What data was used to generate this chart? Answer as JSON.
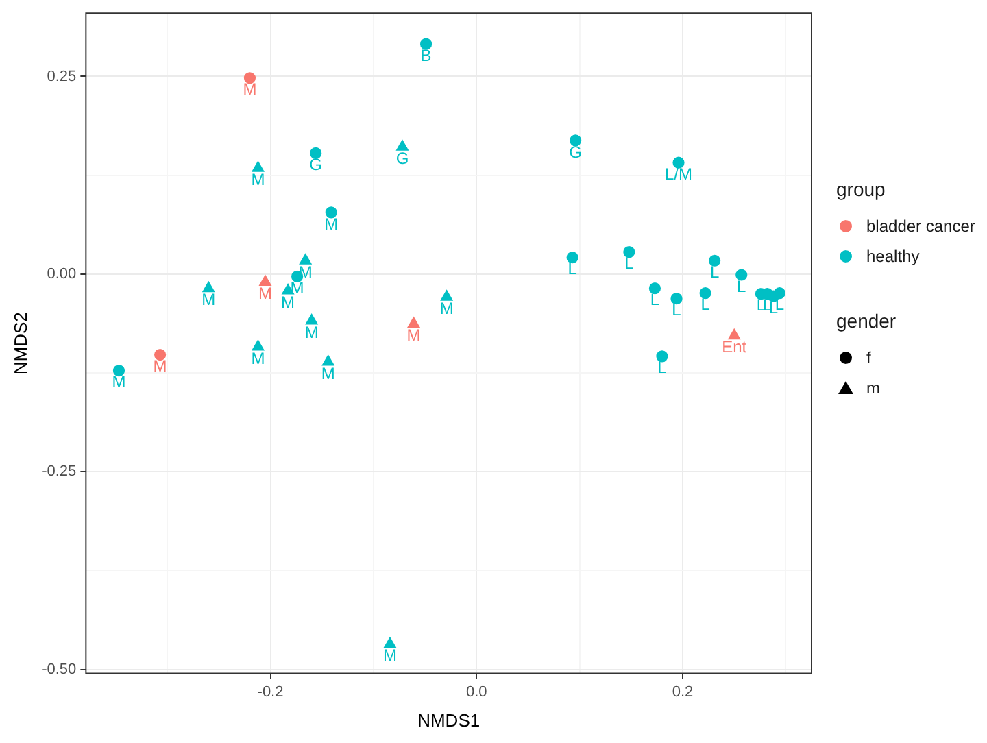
{
  "chart_data": {
    "type": "scatter",
    "xlabel": "NMDS1",
    "ylabel": "NMDS2",
    "xlim": [
      -0.379,
      0.325
    ],
    "ylim": [
      -0.505,
      0.33
    ],
    "xticks": [
      {
        "value": -0.3,
        "label": null
      },
      -0.2,
      {
        "value": -0.1,
        "label": null
      },
      {
        "value": 0,
        "label": "0.0"
      },
      {
        "value": 0.1,
        "label": null
      },
      0.2,
      {
        "value": 0.3,
        "label": null
      }
    ],
    "yticks": [
      {
        "value": -0.5,
        "label": "-0.50"
      },
      {
        "value": -0.375,
        "label": null
      },
      -0.25,
      {
        "value": -0.125,
        "label": null
      },
      {
        "value": 0,
        "label": "0.00"
      },
      {
        "value": 0.125,
        "label": null
      },
      0.25
    ],
    "grid": true,
    "legend": "right",
    "legend_title": "group",
    "annotations": [
      "gender",
      "f",
      "m"
    ],
    "series": [
      {
        "name": "bladder cancer",
        "color": "#f8766d",
        "x": [
          -0.22,
          -0.205,
          -0.061,
          -0.307,
          0.25
        ],
        "values": [
          0.248,
          -0.01,
          -0.063,
          -0.102,
          -0.078
        ],
        "marker": [
          "circle",
          "triangle",
          "triangle",
          "circle",
          "triangle"
        ],
        "value_labels": [
          "M",
          "M",
          "M",
          "M",
          "Ent"
        ]
      },
      {
        "name": "healthy",
        "color": "#00bfc4",
        "x": [
          -0.049,
          -0.156,
          -0.072,
          -0.212,
          -0.141,
          -0.166,
          -0.174,
          -0.183,
          -0.26,
          -0.029,
          -0.16,
          -0.212,
          -0.144,
          -0.347,
          -0.084,
          0.096,
          0.196,
          0.093,
          0.148,
          0.231,
          0.257,
          0.173,
          0.194,
          0.222,
          0.276,
          0.282,
          0.288,
          0.294,
          0.18
        ],
        "values": [
          0.291,
          0.153,
          0.161,
          0.134,
          0.078,
          0.017,
          -0.003,
          -0.021,
          -0.018,
          -0.029,
          -0.059,
          -0.092,
          -0.111,
          -0.122,
          -0.468,
          0.169,
          0.141,
          0.021,
          0.028,
          0.017,
          -0.001,
          -0.018,
          -0.031,
          -0.024,
          -0.025,
          -0.025,
          -0.028,
          -0.024,
          -0.104
        ],
        "marker": [
          "circle",
          "circle",
          "triangle",
          "triangle",
          "circle",
          "triangle",
          "circle",
          "triangle",
          "triangle",
          "triangle",
          "triangle",
          "triangle",
          "triangle",
          "circle",
          "triangle",
          "circle",
          "circle",
          "circle",
          "circle",
          "circle",
          "circle",
          "circle",
          "circle",
          "circle",
          "circle",
          "circle",
          "circle",
          "circle",
          "circle"
        ],
        "value_labels": [
          "B",
          "G",
          "G",
          "M",
          "M",
          "M",
          "M",
          "M",
          "M",
          "M",
          "M",
          "M",
          "M",
          "M",
          "M",
          "G",
          "L/M",
          "L",
          "L",
          "L",
          "L",
          "L",
          "L",
          "L",
          "L",
          "L",
          "L",
          "L",
          "L"
        ]
      }
    ]
  }
}
